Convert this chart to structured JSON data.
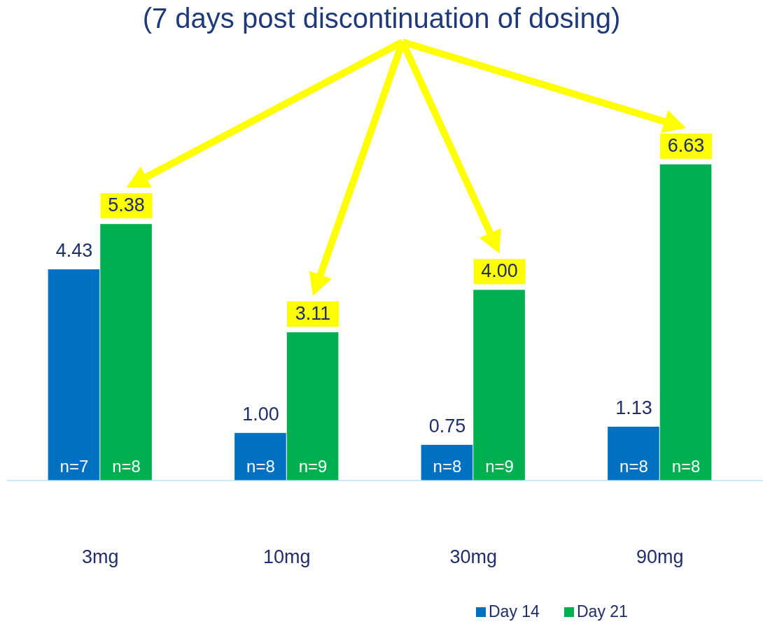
{
  "chart_data": {
    "type": "bar",
    "title": "(7 days post discontinuation of dosing)",
    "categories": [
      "3mg",
      "10mg",
      "30mg",
      "90mg"
    ],
    "series": [
      {
        "name": "Day 14",
        "color": "#0070c0",
        "values": [
          4.43,
          1.0,
          0.75,
          1.13
        ],
        "value_labels": [
          "4.43",
          "1.00",
          "0.75",
          "1.13"
        ]
      },
      {
        "name": "Day 21",
        "color": "#00b050",
        "values": [
          5.38,
          3.11,
          4.0,
          6.63
        ],
        "value_labels": [
          "5.38",
          "3.11",
          "4.00",
          "6.63"
        ]
      }
    ],
    "tick_labels": "x",
    "legend": "bottom right",
    "annotations": [
      "n=7",
      "n=8",
      "n=8",
      "n=9",
      "n=8",
      "n=9",
      "n=8",
      "n=8"
    ]
  }
}
